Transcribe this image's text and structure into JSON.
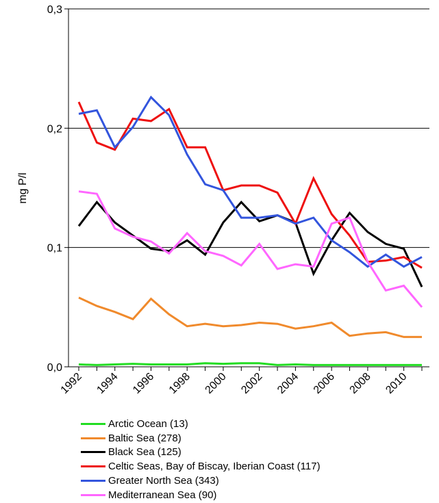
{
  "chart_data": {
    "type": "line",
    "title": "",
    "xlabel": "",
    "ylabel": "mg P/l",
    "x": [
      1992,
      1993,
      1994,
      1995,
      1996,
      1997,
      1998,
      1999,
      2000,
      2001,
      2002,
      2003,
      2004,
      2005,
      2006,
      2007,
      2008,
      2009,
      2010,
      2011
    ],
    "xticks": [
      "1992",
      "1994",
      "1996",
      "1998",
      "2000",
      "2002",
      "2004",
      "2006",
      "2008",
      "2010"
    ],
    "ylim": [
      0,
      0.3
    ],
    "yticks": [
      "0,0",
      "0,1",
      "0,2",
      "0,3"
    ],
    "grid": "horizontal",
    "legend_position": "bottom",
    "series": [
      {
        "name": "Arctic Ocean (13)",
        "color": "#22dd22",
        "values": [
          0.002,
          0.0015,
          0.002,
          0.0025,
          0.002,
          0.002,
          0.002,
          0.003,
          0.0025,
          0.003,
          0.003,
          0.0015,
          0.002,
          0.0015,
          0.0015,
          0.0015,
          0.0015,
          0.0015,
          0.0015,
          0.0015
        ]
      },
      {
        "name": "Baltic Sea (278)",
        "color": "#f08a2c",
        "values": [
          0.058,
          0.051,
          0.046,
          0.04,
          0.057,
          0.044,
          0.034,
          0.036,
          0.034,
          0.035,
          0.037,
          0.036,
          0.032,
          0.034,
          0.037,
          0.026,
          0.028,
          0.029,
          0.025,
          0.025
        ]
      },
      {
        "name": "Black Sea (125)",
        "color": "#000000",
        "values": [
          0.118,
          0.138,
          0.121,
          0.11,
          0.099,
          0.097,
          0.106,
          0.094,
          0.121,
          0.138,
          0.122,
          0.127,
          0.121,
          0.078,
          0.106,
          0.129,
          0.113,
          0.103,
          0.099,
          0.067
        ]
      },
      {
        "name": "Celtic Seas, Bay of Biscay, Iberian Coast (117)",
        "color": "#ee1111",
        "values": [
          0.222,
          0.188,
          0.182,
          0.208,
          0.206,
          0.216,
          0.184,
          0.184,
          0.148,
          0.152,
          0.152,
          0.146,
          0.12,
          0.158,
          0.128,
          0.11,
          0.088,
          0.089,
          0.092,
          0.083
        ]
      },
      {
        "name": "Greater North Sea (343)",
        "color": "#3355dd",
        "values": [
          0.212,
          0.215,
          0.184,
          0.201,
          0.226,
          0.211,
          0.178,
          0.153,
          0.148,
          0.125,
          0.125,
          0.127,
          0.12,
          0.125,
          0.106,
          0.096,
          0.084,
          0.094,
          0.084,
          0.092
        ]
      },
      {
        "name": "Mediterranean Sea (90)",
        "color": "#ff66ff",
        "values": [
          0.147,
          0.145,
          0.116,
          0.109,
          0.105,
          0.095,
          0.112,
          0.097,
          0.093,
          0.085,
          0.103,
          0.082,
          0.086,
          0.084,
          0.12,
          0.125,
          0.088,
          0.064,
          0.068,
          0.05
        ]
      }
    ]
  }
}
